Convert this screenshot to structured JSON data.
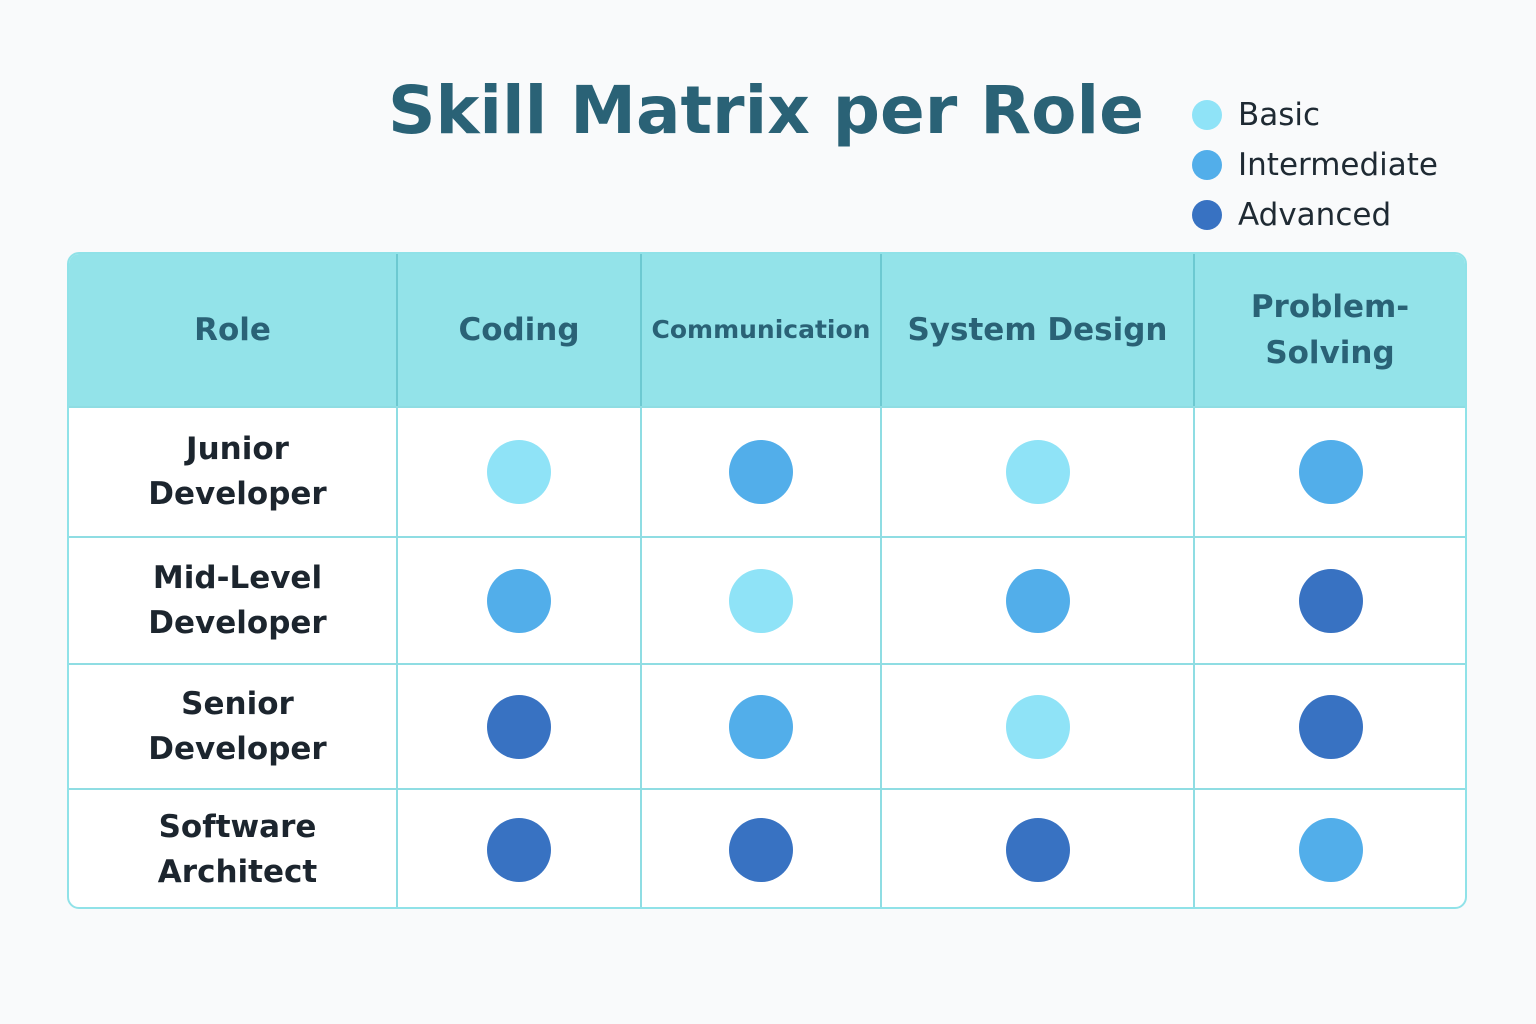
{
  "title": "Skill Matrix per Role",
  "legend": [
    {
      "label": "Basic",
      "color": "#8fe3f7"
    },
    {
      "label": "Intermediate",
      "color": "#52aeea"
    },
    {
      "label": "Advanced",
      "color": "#3872c2"
    }
  ],
  "levels": {
    "Basic": "#8fe3f7",
    "Intermediate": "#52aeea",
    "Advanced": "#3872c2"
  },
  "table": {
    "headers": [
      "Role",
      "Coding",
      "Communication",
      "System Design",
      "Problem-\nSolving"
    ],
    "rows": [
      {
        "role": "Junior\nDeveloper",
        "levels": [
          "Basic",
          "Intermediate",
          "Basic",
          "Intermediate"
        ]
      },
      {
        "role": "Mid-Level\nDeveloper",
        "levels": [
          "Intermediate",
          "Basic",
          "Intermediate",
          "Advanced"
        ]
      },
      {
        "role": "Senior\nDeveloper",
        "levels": [
          "Advanced",
          "Intermediate",
          "Basic",
          "Advanced"
        ]
      },
      {
        "role": "Software\nArchitect",
        "levels": [
          "Advanced",
          "Advanced",
          "Advanced",
          "Intermediate"
        ]
      }
    ]
  }
}
